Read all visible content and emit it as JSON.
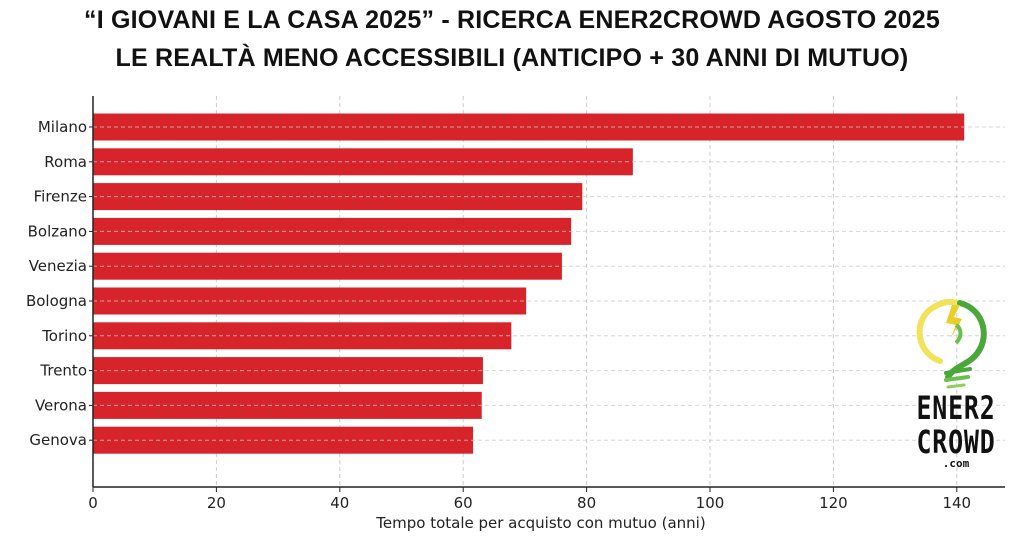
{
  "header": {
    "title_line1": "“I GIOVANI E LA CASA 2025” - RICERCA ENER2CROWD AGOSTO 2025",
    "title_line2": "LE REALTÀ MENO ACCESSIBILI (ANTICIPO + 30 ANNI DI MUTUO)"
  },
  "logo": {
    "icon": "lightbulb-lightning-icon",
    "line1": "ENER2",
    "line2": "CROWD",
    "line3": ".com"
  },
  "colors": {
    "bar": "#d7242a",
    "grid": "#cccccc",
    "axis": "#222222"
  },
  "chart_data": {
    "type": "bar",
    "orientation": "horizontal",
    "title": "“I GIOVANI E LA CASA 2025” - RICERCA ENER2CROWD AGOSTO 2025 / LE REALTÀ MENO ACCESSIBILI (ANTICIPO + 30 ANNI DI MUTUO)",
    "categories": [
      "Milano",
      "Roma",
      "Firenze",
      "Bolzano",
      "Venezia",
      "Bologna",
      "Torino",
      "Trento",
      "Verona",
      "Genova"
    ],
    "values": [
      141.2,
      87.5,
      79.3,
      77.5,
      76.0,
      70.2,
      67.8,
      63.2,
      63.0,
      61.6
    ],
    "xlabel": "Tempo totale per acquisto con mutuo (anni)",
    "ylabel": "",
    "xlim": [
      0,
      148
    ],
    "xticks": [
      0,
      20,
      40,
      60,
      80,
      100,
      120,
      140
    ],
    "xtick_labels": [
      "0",
      "20",
      "40",
      "60",
      "80",
      "100",
      "120",
      "140"
    ],
    "grid": true,
    "grid_style": "dashed",
    "legend": "none"
  }
}
